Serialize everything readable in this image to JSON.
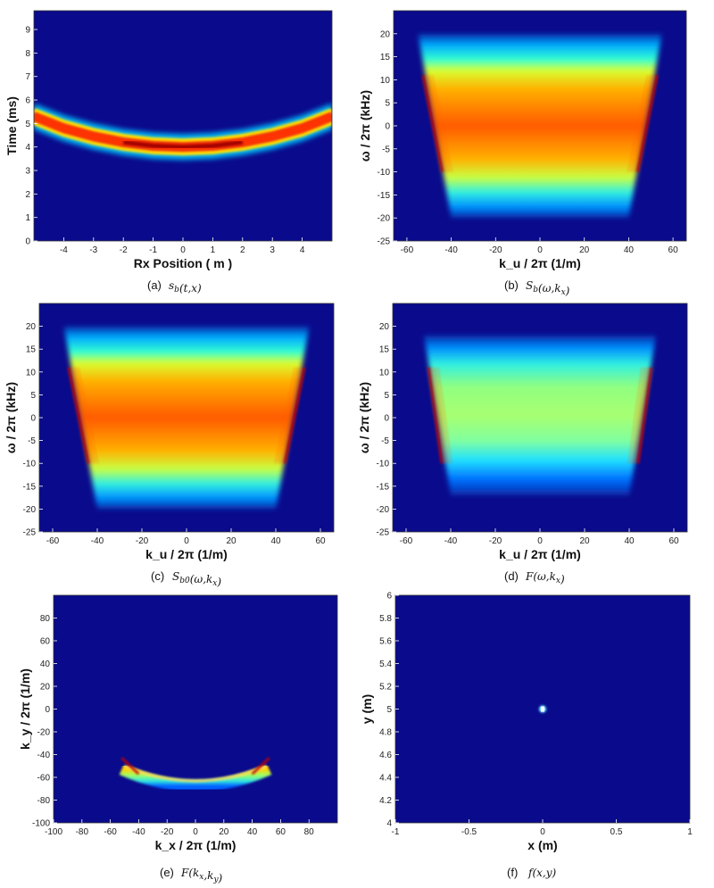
{
  "figure": {
    "panels": [
      {
        "id": "a",
        "caption_letter": "(a)",
        "caption_math": "s_b(t,x)",
        "xlabel": "Rx Position ( m )",
        "ylabel": "Time (ms)",
        "xticks": [
          "-4",
          "-3",
          "-2",
          "-1",
          "0",
          "1",
          "2",
          "3",
          "4"
        ],
        "yticks": [
          "0",
          "1",
          "2",
          "3",
          "4",
          "5",
          "6",
          "7",
          "8",
          "9"
        ]
      },
      {
        "id": "b",
        "caption_letter": "(b)",
        "caption_math": "S_b(ω,k_x)",
        "xlabel": "k_u / 2π (1/m)",
        "ylabel": "ω / 2π (kHz)",
        "xticks": [
          "-60",
          "-40",
          "-20",
          "0",
          "20",
          "40",
          "60"
        ],
        "yticks": [
          "-25",
          "-20",
          "-15",
          "-10",
          "-5",
          "0",
          "5",
          "10",
          "15",
          "20"
        ]
      },
      {
        "id": "c",
        "caption_letter": "(c)",
        "caption_math": "S_b0(ω,k_x)",
        "xlabel": "k_u / 2π (1/m)",
        "ylabel": "ω / 2π (kHz)",
        "xticks": [
          "-60",
          "-40",
          "-20",
          "0",
          "20",
          "40",
          "60"
        ],
        "yticks": [
          "-25",
          "-20",
          "-15",
          "-10",
          "-5",
          "0",
          "5",
          "10",
          "15",
          "20"
        ]
      },
      {
        "id": "d",
        "caption_letter": "(d)",
        "caption_math": "F(ω,k_x)",
        "xlabel": "k_u / 2π (1/m)",
        "ylabel": "ω / 2π (kHz)",
        "xticks": [
          "-60",
          "-40",
          "-20",
          "0",
          "20",
          "40",
          "60"
        ],
        "yticks": [
          "-25",
          "-20",
          "-15",
          "-10",
          "-5",
          "0",
          "5",
          "10",
          "15",
          "20"
        ]
      },
      {
        "id": "e",
        "caption_letter": "(e)",
        "caption_math": "F(k_x,k_y)",
        "xlabel": "k_x / 2π (1/m)",
        "ylabel": "k_y / 2π (1/m)",
        "xticks": [
          "-100",
          "-80",
          "-60",
          "-40",
          "-20",
          "0",
          "20",
          "40",
          "60",
          "80"
        ],
        "yticks": [
          "-100",
          "-80",
          "-60",
          "-40",
          "-20",
          "0",
          "20",
          "40",
          "60",
          "80"
        ]
      },
      {
        "id": "f",
        "caption_letter": "(f)",
        "caption_math": "f(x,y)",
        "xlabel": "x (m)",
        "ylabel": "y (m)",
        "xticks": [
          "-1",
          "-0.5",
          "0",
          "0.5",
          "1"
        ],
        "yticks": [
          "4",
          "4.2",
          "4.4",
          "4.6",
          "4.8",
          "5",
          "5.2",
          "5.4",
          "5.6",
          "5.8",
          "6"
        ]
      }
    ]
  },
  "chart_data": [
    {
      "type": "heatmap",
      "panel": "a",
      "xlabel": "Rx Position ( m )",
      "ylabel": "Time (ms)",
      "xlim": [
        -5,
        5
      ],
      "ylim": [
        0,
        9.8
      ],
      "feature": "hyperbolic curve, minimum 4 ms at x=0 rising to about 5.3 ms at x=±5",
      "curve_points": [
        [
          -5,
          5.3
        ],
        [
          -4,
          4.8
        ],
        [
          -3,
          4.45
        ],
        [
          -2,
          4.2
        ],
        [
          -1,
          4.05
        ],
        [
          0,
          4.0
        ],
        [
          1,
          4.05
        ],
        [
          2,
          4.2
        ],
        [
          3,
          4.45
        ],
        [
          4,
          4.8
        ],
        [
          5,
          5.3
        ]
      ]
    },
    {
      "type": "heatmap",
      "panel": "b",
      "xlabel": "k_u / 2π (1/m)",
      "ylabel": "ω / 2π (kHz)",
      "xlim": [
        -66,
        66
      ],
      "ylim": [
        -25,
        25
      ],
      "feature": "trapezoidal spectrum, peak intensity near 0 kHz",
      "band_top_kHz": 20,
      "band_bottom_kHz": -20,
      "edge_top": [
        -55,
        55
      ],
      "edge_bottom": [
        -40,
        40
      ]
    },
    {
      "type": "heatmap",
      "panel": "c",
      "xlabel": "k_u / 2π (1/m)",
      "ylabel": "ω / 2π (kHz)",
      "xlim": [
        -66,
        66
      ],
      "ylim": [
        -25,
        25
      ],
      "feature": "trapezoidal spectrum, peak intensity near 0 kHz",
      "band_top_kHz": 20,
      "band_bottom_kHz": -20,
      "edge_top": [
        -55,
        55
      ],
      "edge_bottom": [
        -40,
        40
      ]
    },
    {
      "type": "heatmap",
      "panel": "d",
      "xlabel": "k_u / 2π (1/m)",
      "ylabel": "ω / 2π (kHz)",
      "xlim": [
        -66,
        66
      ],
      "ylim": [
        -25,
        25
      ],
      "feature": "trapezoidal spectrum, flattened center with red edges",
      "band_top_kHz": 18,
      "band_bottom_kHz": -17,
      "edge_top": [
        -52,
        52
      ],
      "edge_bottom": [
        -40,
        40
      ]
    },
    {
      "type": "heatmap",
      "panel": "e",
      "xlabel": "k_x / 2π (1/m)",
      "ylabel": "k_y / 2π (1/m)",
      "xlim": [
        -100,
        100
      ],
      "ylim": [
        -100,
        100
      ],
      "feature": "arc from about (-52,-55) down to (0,-67) and up to (52,-55)"
    },
    {
      "type": "heatmap",
      "panel": "f",
      "xlabel": "x (m)",
      "ylabel": "y (m)",
      "xlim": [
        -1,
        1
      ],
      "ylim": [
        4,
        6
      ],
      "feature": "point target",
      "point": [
        0,
        5.0
      ]
    }
  ]
}
